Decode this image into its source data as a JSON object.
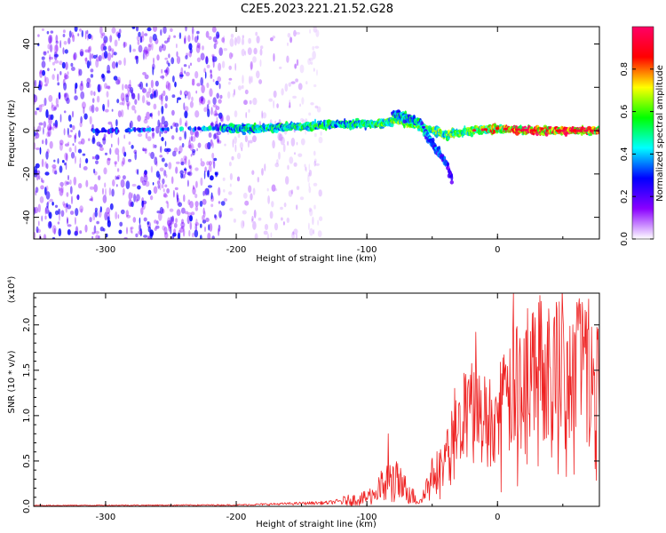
{
  "title": "C2E5.2023.221.21.52.G28",
  "colors": {
    "snr_line": "#ee2222",
    "purple": "#7a1ee8",
    "axis": "#000000"
  },
  "colorbar": {
    "label": "Normalized spectral amplitude",
    "range": [
      0,
      1
    ],
    "ticks": [
      0.0,
      0.2,
      0.4,
      0.6,
      0.8
    ],
    "tick_labels": [
      "0.0",
      "0.2",
      "0.4",
      "0.6",
      "0.8"
    ],
    "colors": [
      "#ffffff",
      "#8a00ff",
      "#0000ff",
      "#00ffff",
      "#00ff00",
      "#ffff00",
      "#ff0000",
      "#ff0066"
    ]
  },
  "chart_data": [
    {
      "type": "heatmap",
      "title": "C2E5.2023.221.21.52.G28",
      "xlabel": "Height of straight line (km)",
      "ylabel": "Frequency (Hz)",
      "xlim": [
        -355,
        78
      ],
      "ylim": [
        -50,
        48
      ],
      "x_ticks": [
        -300,
        -200,
        -100,
        0
      ],
      "x_tick_labels": [
        "-300",
        "-200",
        "-100",
        "0"
      ],
      "y_ticks": [
        -40,
        -20,
        0,
        20,
        40
      ],
      "y_tick_labels": [
        "-40",
        "-20",
        "0",
        "20",
        "40"
      ],
      "grid": false,
      "noise_regions": [
        {
          "x_range": [
            -355,
            -210
          ],
          "level": 0.35
        },
        {
          "x_range": [
            -210,
            -150
          ],
          "level": 0.12
        },
        {
          "x_range": [
            -150,
            -135
          ],
          "level": 0.05
        }
      ],
      "ridge": [
        {
          "x": -310,
          "freq": 0,
          "amp": 0.3
        },
        {
          "x": -210,
          "freq": 1,
          "amp": 0.45
        },
        {
          "x": -180,
          "freq": 1,
          "amp": 0.5
        },
        {
          "x": -150,
          "freq": 2,
          "amp": 0.55
        },
        {
          "x": -120,
          "freq": 3,
          "amp": 0.5
        },
        {
          "x": -90,
          "freq": 3,
          "amp": 0.55
        },
        {
          "x": -75,
          "freq": 5,
          "amp": 0.6
        },
        {
          "x": -60,
          "freq": 2,
          "amp": 0.6
        },
        {
          "x": -40,
          "freq": -2,
          "amp": 0.6
        },
        {
          "x": -20,
          "freq": 0,
          "amp": 0.6
        },
        {
          "x": 0,
          "freq": 1,
          "amp": 0.8
        },
        {
          "x": 30,
          "freq": 0,
          "amp": 0.9
        },
        {
          "x": 78,
          "freq": 0,
          "amp": 0.85
        }
      ],
      "branch": [
        {
          "x": -80,
          "freq": 8,
          "amp": 0.45
        },
        {
          "x": -60,
          "freq": 4,
          "amp": 0.45
        },
        {
          "x": -50,
          "freq": -6,
          "amp": 0.35
        },
        {
          "x": -40,
          "freq": -14,
          "amp": 0.3
        },
        {
          "x": -35,
          "freq": -22,
          "amp": 0.2
        }
      ]
    },
    {
      "type": "line",
      "xlabel": "Height of straight line (km)",
      "ylabel": "SNR (10 * v/v)",
      "y_multiplier": "(x10⁴)",
      "xlim": [
        -355,
        78
      ],
      "ylim": [
        0,
        23500
      ],
      "x_ticks": [
        -300,
        -200,
        -100,
        0
      ],
      "x_tick_labels": [
        "-300",
        "-200",
        "-100",
        "0"
      ],
      "y_ticks": [
        0,
        5000,
        10000,
        15000,
        20000
      ],
      "y_tick_labels": [
        "0.0",
        "0.5",
        "1.0",
        "1.5",
        "2.0"
      ],
      "grid": false,
      "series": [
        {
          "color": "#ee2222",
          "envelope": [
            {
              "x": -355,
              "y": 100
            },
            {
              "x": -200,
              "y": 150
            },
            {
              "x": -130,
              "y": 400
            },
            {
              "x": -100,
              "y": 900
            },
            {
              "x": -90,
              "y": 2000
            },
            {
              "x": -80,
              "y": 3000
            },
            {
              "x": -70,
              "y": 1800
            },
            {
              "x": -60,
              "y": 500
            },
            {
              "x": -50,
              "y": 3500
            },
            {
              "x": -40,
              "y": 5000
            },
            {
              "x": -30,
              "y": 9000
            },
            {
              "x": -20,
              "y": 10500
            },
            {
              "x": -10,
              "y": 9500
            },
            {
              "x": 0,
              "y": 10000
            },
            {
              "x": 10,
              "y": 12000
            },
            {
              "x": 20,
              "y": 14500
            },
            {
              "x": 30,
              "y": 15500
            },
            {
              "x": 50,
              "y": 16000
            },
            {
              "x": 78,
              "y": 16500
            }
          ],
          "spikes": [
            {
              "x": -84,
              "y": 8000
            },
            {
              "x": -33,
              "y": 13000
            },
            {
              "x": -17,
              "y": 19200
            },
            {
              "x": 12,
              "y": 23500
            },
            {
              "x": 14,
              "y": 19500
            },
            {
              "x": 69,
              "y": 19500
            }
          ]
        }
      ]
    }
  ]
}
